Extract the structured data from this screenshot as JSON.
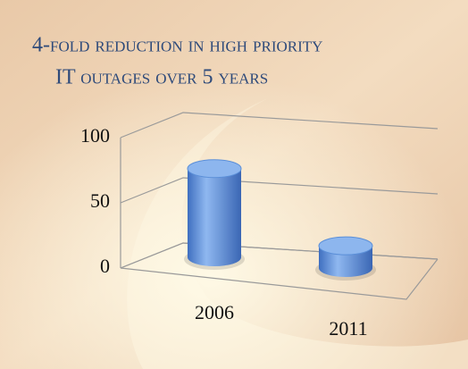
{
  "chart_data": {
    "type": "bar",
    "title": [
      "4-fold reduction in high priority",
      "IT outages over 5 years"
    ],
    "categories": [
      "2006",
      "2011"
    ],
    "values": [
      68,
      17
    ],
    "color": "#5b8fd8",
    "ylim": [
      0,
      100
    ],
    "yticks": [
      0,
      50,
      100
    ],
    "grid": true
  }
}
